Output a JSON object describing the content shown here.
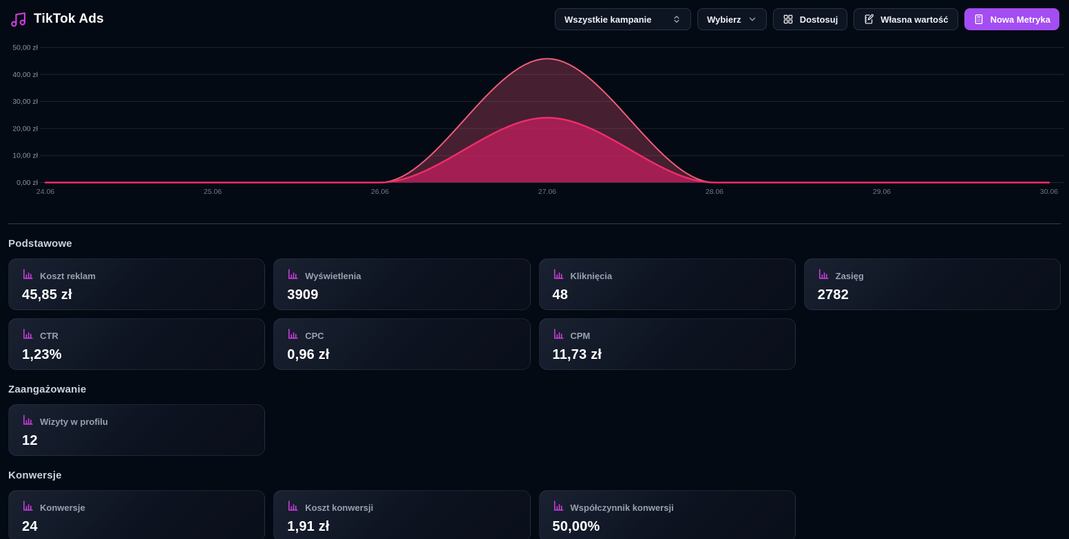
{
  "app": {
    "title": "TikTok Ads"
  },
  "toolbar": {
    "campaign_select": "Wszystkie kampanie",
    "choose_dropdown": "Wybierz",
    "customize_button": "Dostosuj",
    "custom_value_button": "Własna wartość",
    "new_metric_button": "Nowa Metryka"
  },
  "colors": {
    "background": "#040a14",
    "accent_purple": "#a34df2",
    "icon_magenta": "#cf3ee0",
    "grid_line": "rgba(148,163,184,0.18)",
    "divider": "rgba(148,163,184,0.35)"
  },
  "chart_data": {
    "type": "area",
    "x": [
      "24.06",
      "25.06",
      "26.06",
      "27.06",
      "28.06",
      "29.06",
      "30.06"
    ],
    "series": [
      {
        "name": "series_1_koszt",
        "values": [
          0,
          0,
          0,
          45.85,
          0,
          0,
          0
        ],
        "line_color": "#ef5d78",
        "fill_color": "rgba(226,82,120,0.30)",
        "line_width": 2
      },
      {
        "name": "series_2",
        "values": [
          0,
          0,
          0,
          24,
          0,
          0,
          0
        ],
        "line_color": "#ee2d68",
        "fill_color": "rgba(214,30,100,0.65)",
        "line_width": 2.5
      }
    ],
    "ylim": [
      0,
      50
    ],
    "yticks": [
      {
        "value": 50,
        "label": "50,00 zł"
      },
      {
        "value": 40,
        "label": "40,00 zł"
      },
      {
        "value": 30,
        "label": "30,00 zł"
      },
      {
        "value": 20,
        "label": "20,00 zł"
      },
      {
        "value": 10,
        "label": "10,00 zł"
      },
      {
        "value": 0,
        "label": "0,00 zł"
      }
    ],
    "grid": true,
    "legend": "none",
    "title": ""
  },
  "metric_sections": [
    {
      "title": "Podstawowe",
      "cards": [
        {
          "label": "Koszt reklam",
          "value": "45,85 zł"
        },
        {
          "label": "Wyświetlenia",
          "value": "3909"
        },
        {
          "label": "Kliknięcia",
          "value": "48"
        },
        {
          "label": "Zasięg",
          "value": "2782"
        },
        {
          "label": "CTR",
          "value": "1,23%"
        },
        {
          "label": "CPC",
          "value": "0,96 zł"
        },
        {
          "label": "CPM",
          "value": "11,73 zł"
        }
      ]
    },
    {
      "title": "Zaangażowanie",
      "cards": [
        {
          "label": "Wizyty w profilu",
          "value": "12"
        }
      ]
    },
    {
      "title": "Konwersje",
      "cards": [
        {
          "label": "Konwersje",
          "value": "24"
        },
        {
          "label": "Koszt konwersji",
          "value": "1,91 zł"
        },
        {
          "label": "Współczynnik konwersji",
          "value": "50,00%"
        }
      ]
    }
  ]
}
